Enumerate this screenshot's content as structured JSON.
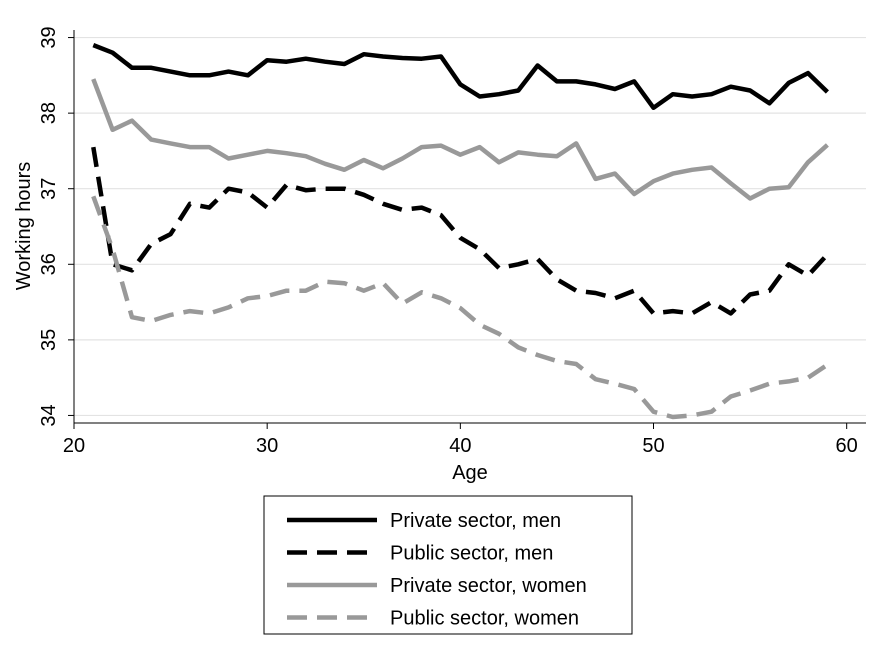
{
  "chart_data": {
    "type": "line",
    "xlabel": "Age",
    "ylabel": "Working hours",
    "xlim": [
      20,
      61
    ],
    "ylim": [
      33.9,
      39.1
    ],
    "xticks": [
      20,
      30,
      40,
      50,
      60
    ],
    "yticks": [
      34,
      35,
      36,
      37,
      38,
      39
    ],
    "grid": true,
    "legend_position": "bottom",
    "x": [
      21,
      22,
      23,
      24,
      25,
      26,
      27,
      28,
      29,
      30,
      31,
      32,
      33,
      34,
      35,
      36,
      37,
      38,
      39,
      40,
      41,
      42,
      43,
      44,
      45,
      46,
      47,
      48,
      49,
      50,
      51,
      52,
      53,
      54,
      55,
      56,
      57,
      58,
      59
    ],
    "series": [
      {
        "name": "Private sector, men",
        "color": "#000000",
        "dash": "solid",
        "values": [
          38.9,
          38.8,
          38.6,
          38.6,
          38.55,
          38.5,
          38.5,
          38.55,
          38.5,
          38.7,
          38.68,
          38.72,
          38.68,
          38.65,
          38.78,
          38.75,
          38.73,
          38.72,
          38.75,
          38.38,
          38.22,
          38.25,
          38.3,
          38.63,
          38.42,
          38.42,
          38.38,
          38.32,
          38.42,
          38.07,
          38.25,
          38.22,
          38.25,
          38.35,
          38.3,
          38.13,
          38.4,
          38.53,
          38.28
        ]
      },
      {
        "name": "Public sector, men",
        "color": "#000000",
        "dash": "dashed",
        "values": [
          37.55,
          36.0,
          35.92,
          36.27,
          36.4,
          36.8,
          36.75,
          37.0,
          36.95,
          36.75,
          37.05,
          36.98,
          37.0,
          37.0,
          36.92,
          36.8,
          36.72,
          36.75,
          36.65,
          36.35,
          36.2,
          35.95,
          36.0,
          36.07,
          35.8,
          35.65,
          35.62,
          35.55,
          35.65,
          35.35,
          35.38,
          35.35,
          35.5,
          35.35,
          35.6,
          35.65,
          36.0,
          35.85,
          36.13
        ]
      },
      {
        "name": "Private sector, women",
        "color": "#999999",
        "dash": "solid",
        "values": [
          38.45,
          37.78,
          37.9,
          37.65,
          37.6,
          37.55,
          37.55,
          37.4,
          37.45,
          37.5,
          37.47,
          37.43,
          37.33,
          37.25,
          37.38,
          37.27,
          37.4,
          37.55,
          37.57,
          37.45,
          37.55,
          37.35,
          37.48,
          37.45,
          37.43,
          37.6,
          37.13,
          37.2,
          36.93,
          37.1,
          37.2,
          37.25,
          37.28,
          37.07,
          36.87,
          37.0,
          37.02,
          37.35,
          37.58
        ]
      },
      {
        "name": "Public sector, women",
        "color": "#999999",
        "dash": "dashed",
        "values": [
          36.9,
          36.2,
          35.3,
          35.25,
          35.33,
          35.38,
          35.35,
          35.43,
          35.55,
          35.58,
          35.65,
          35.65,
          35.77,
          35.75,
          35.65,
          35.75,
          35.48,
          35.63,
          35.55,
          35.42,
          35.2,
          35.08,
          34.9,
          34.8,
          34.72,
          34.68,
          34.48,
          34.42,
          34.35,
          34.05,
          33.98,
          34.0,
          34.05,
          34.25,
          34.33,
          34.42,
          34.45,
          34.5,
          34.67
        ]
      }
    ]
  }
}
